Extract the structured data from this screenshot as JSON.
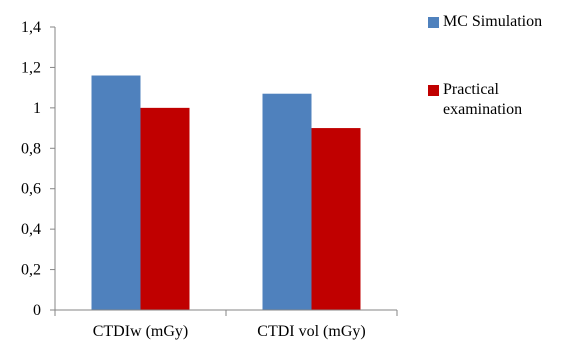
{
  "chart_data": {
    "type": "bar",
    "categories": [
      "CTDIw (mGy)",
      "CTDI vol (mGy)"
    ],
    "series": [
      {
        "name": "MC Simulation",
        "values": [
          1.16,
          1.07
        ],
        "color": "#4f81bd"
      },
      {
        "name": "Practical examination",
        "values": [
          1.0,
          0.9
        ],
        "color": "#c00000"
      }
    ],
    "title": "",
    "xlabel": "",
    "ylabel": "",
    "ylim": [
      0,
      1.4
    ],
    "yticks": [
      "0",
      "0,2",
      "0,4",
      "0,6",
      "0,8",
      "1",
      "1,2",
      "1,4"
    ],
    "grid": false,
    "legend": "right"
  },
  "legend": {
    "items": [
      {
        "label": "MC Simulation",
        "color": "#4f81bd"
      },
      {
        "label": "Practical examination",
        "color": "#c00000"
      }
    ]
  }
}
